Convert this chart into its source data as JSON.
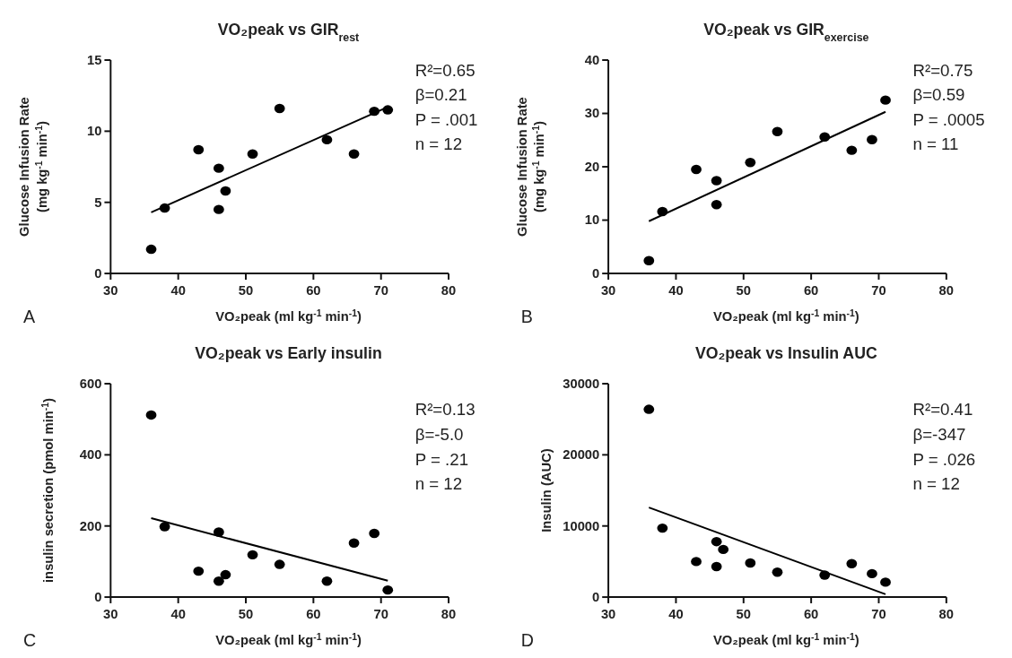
{
  "chart_data": [
    {
      "type": "scatter",
      "title": "VO₂peak vs GIR$_{rest}$",
      "xlabel": "VO₂peak (ml kg$^{-1}$ min$^{-1}$)",
      "ylabel": "Glucose Infusion Rate\n(mg kg$^{-1}$ min$^{-1}$)",
      "xlim": [
        30,
        80
      ],
      "xticks": [
        30,
        40,
        50,
        60,
        70,
        80
      ],
      "ylim": [
        0,
        15
      ],
      "yticks": [
        0,
        5,
        10,
        15
      ],
      "annotations": [
        "R²=0.65",
        "β=0.21",
        "P = .001",
        "n = 12",
        "A"
      ],
      "series": [
        {
          "marker": "circle",
          "color": "#000000",
          "x": [
            36,
            38,
            43,
            46,
            46,
            47,
            51,
            55,
            62,
            66,
            69,
            71
          ],
          "values": [
            1.7,
            4.6,
            8.7,
            7.4,
            4.5,
            5.8,
            8.4,
            11.6,
            9.4,
            8.4,
            11.4,
            11.5
          ]
        },
        {
          "type": "line",
          "marker": "none",
          "color": "#000000",
          "x": [
            36,
            71
          ],
          "values": [
            4.3,
            11.7
          ]
        }
      ]
    },
    {
      "type": "scatter",
      "title": "VO₂peak vs GIR$_{exercise}$",
      "xlabel": "VO₂peak (ml kg$^{-1}$ min$^{-1}$)",
      "ylabel": "Glucose Infusion Rate\n(mg kg$^{-1}$ min$^{-1}$)",
      "xlim": [
        30,
        80
      ],
      "xticks": [
        30,
        40,
        50,
        60,
        70,
        80
      ],
      "ylim": [
        0,
        40
      ],
      "yticks": [
        0,
        10,
        20,
        30,
        40
      ],
      "annotations": [
        "R²=0.75",
        "β=0.59",
        "P = .0005",
        "n = 11",
        "B"
      ],
      "series": [
        {
          "marker": "circle",
          "color": "#000000",
          "x": [
            36,
            38,
            43,
            46,
            46,
            51,
            55,
            62,
            66,
            69,
            71
          ],
          "values": [
            2.4,
            11.6,
            19.5,
            17.4,
            12.9,
            20.8,
            26.6,
            25.6,
            23.1,
            25.1,
            32.5
          ]
        },
        {
          "type": "line",
          "marker": "none",
          "color": "#000000",
          "x": [
            36,
            71
          ],
          "values": [
            9.8,
            30.3
          ]
        }
      ]
    },
    {
      "type": "scatter",
      "title": "VO₂peak vs Early insulin",
      "xlabel": "VO₂peak (ml kg$^{-1}$ min$^{-1}$)",
      "ylabel": "insulin secretion (pmol min$^{-1}$)",
      "xlim": [
        30,
        80
      ],
      "xticks": [
        30,
        40,
        50,
        60,
        70,
        80
      ],
      "ylim": [
        0,
        600
      ],
      "yticks": [
        0,
        200,
        400,
        600
      ],
      "annotations": [
        "R²=0.13",
        "β=-5.0",
        "P = .21",
        "n = 12",
        "C"
      ],
      "series": [
        {
          "marker": "circle",
          "color": "#000000",
          "x": [
            36,
            38,
            43,
            46,
            46,
            47,
            51,
            55,
            62,
            66,
            69,
            71
          ],
          "values": [
            512,
            198,
            73,
            183,
            45,
            63,
            119,
            92,
            45,
            152,
            179,
            20
          ]
        },
        {
          "type": "line",
          "marker": "none",
          "color": "#000000",
          "x": [
            36,
            71
          ],
          "values": [
            222,
            46
          ]
        }
      ]
    },
    {
      "type": "scatter",
      "title": "VO₂peak vs Insulin AUC",
      "xlabel": "VO₂peak (ml kg$^{-1}$ min$^{-1}$)",
      "ylabel": "Insulin (AUC)",
      "xlim": [
        30,
        80
      ],
      "xticks": [
        30,
        40,
        50,
        60,
        70,
        80
      ],
      "ylim": [
        0,
        30000
      ],
      "yticks": [
        0,
        10000,
        20000,
        30000
      ],
      "annotations": [
        "R²=0.41",
        "β=-347",
        "P = .026",
        "n = 12",
        "D"
      ],
      "series": [
        {
          "marker": "circle",
          "color": "#000000",
          "x": [
            36,
            38,
            43,
            46,
            46,
            47,
            51,
            55,
            62,
            66,
            69,
            71
          ],
          "values": [
            26400,
            9700,
            5000,
            7800,
            4300,
            6700,
            4800,
            3500,
            3100,
            4700,
            3300,
            2100
          ]
        },
        {
          "type": "line",
          "marker": "none",
          "color": "#000000",
          "x": [
            36,
            71
          ],
          "values": [
            12600,
            400
          ]
        }
      ]
    }
  ]
}
